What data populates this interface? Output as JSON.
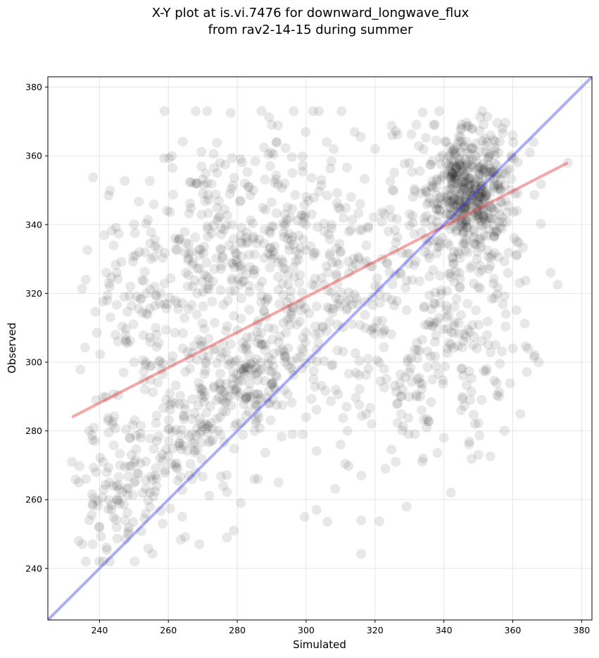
{
  "chart_data": {
    "type": "scatter",
    "title": "X-Y plot at is.vi.7476 for downward_longwave_flux",
    "subtitle": "from rav2-14-15 during summer",
    "xlabel": "Simulated",
    "ylabel": "Observed",
    "xlim": [
      225,
      383
    ],
    "ylim": [
      225,
      383
    ],
    "x_ticks": [
      240,
      260,
      280,
      300,
      320,
      340,
      360,
      380
    ],
    "y_ticks": [
      240,
      260,
      280,
      300,
      320,
      340,
      360,
      380
    ],
    "grid": true,
    "lines": [
      {
        "role": "regression fit",
        "x": [
          232,
          376
        ],
        "y": [
          284,
          358
        ],
        "color": "#e83c3c"
      },
      {
        "role": "1:1 line",
        "x": [
          225,
          383
        ],
        "y": [
          225,
          383
        ],
        "color": "#3c3cf0"
      }
    ],
    "point_color": "#000000",
    "clusters": [
      {
        "cx": 347,
        "cy": 350,
        "sx": 6,
        "sy": 9,
        "n": 420
      },
      {
        "cx": 345,
        "cy": 322,
        "sx": 10,
        "sy": 22,
        "n": 220
      },
      {
        "cx": 283,
        "cy": 296,
        "sx": 7,
        "sy": 10,
        "n": 160
      },
      {
        "cx": 276,
        "cy": 336,
        "sx": 14,
        "sy": 14,
        "n": 240
      },
      {
        "cx": 263,
        "cy": 280,
        "sx": 9,
        "sy": 12,
        "n": 130
      },
      {
        "cx": 247,
        "cy": 262,
        "sx": 6,
        "sy": 10,
        "n": 90
      },
      {
        "cx": 253,
        "cy": 308,
        "sx": 10,
        "sy": 16,
        "n": 110
      },
      {
        "cx": 305,
        "cy": 328,
        "sx": 16,
        "sy": 22,
        "n": 260
      },
      {
        "cx": 327,
        "cy": 300,
        "sx": 14,
        "sy": 20,
        "n": 110
      }
    ],
    "points": [
      [
        234,
        248
      ],
      [
        235,
        247
      ],
      [
        236,
        242
      ],
      [
        237,
        254
      ],
      [
        238,
        247
      ],
      [
        240,
        252
      ],
      [
        241,
        271
      ],
      [
        243,
        242
      ],
      [
        245,
        252
      ],
      [
        239,
        289
      ],
      [
        237,
        280
      ],
      [
        247,
        297
      ],
      [
        250,
        300
      ],
      [
        255,
        330
      ],
      [
        257,
        333
      ],
      [
        262,
        336
      ],
      [
        270,
        349
      ],
      [
        275,
        358
      ],
      [
        290,
        369
      ],
      [
        302,
        373
      ],
      [
        306,
        364
      ],
      [
        320,
        362
      ],
      [
        325,
        366
      ],
      [
        332,
        369
      ],
      [
        337,
        369
      ],
      [
        348,
        368
      ],
      [
        352,
        365
      ],
      [
        357,
        368
      ],
      [
        360,
        366
      ],
      [
        366,
        364
      ],
      [
        371,
        326
      ],
      [
        376,
        358
      ],
      [
        365,
        361
      ],
      [
        361,
        331
      ],
      [
        362,
        323
      ],
      [
        360,
        304
      ],
      [
        350,
        273
      ],
      [
        345,
        286
      ],
      [
        340,
        278
      ],
      [
        334,
        272
      ],
      [
        316,
        254
      ],
      [
        303,
        257
      ],
      [
        286,
        266
      ],
      [
        279,
        251
      ],
      [
        277,
        249
      ],
      [
        269,
        247
      ],
      [
        276,
        264
      ],
      [
        292,
        265
      ],
      [
        316,
        267
      ],
      [
        323,
        269
      ],
      [
        326,
        271
      ],
      [
        236,
        324
      ],
      [
        243,
        322
      ],
      [
        249,
        322
      ],
      [
        256,
        322
      ],
      [
        275,
        284
      ],
      [
        281,
        259
      ],
      [
        300,
        284
      ],
      [
        310,
        276
      ],
      [
        335,
        281
      ],
      [
        351,
        289
      ],
      [
        356,
        290
      ],
      [
        342,
        262
      ],
      [
        299,
        279
      ],
      [
        296,
        279
      ],
      [
        289,
        288
      ],
      [
        270,
        302
      ],
      [
        262,
        318
      ],
      [
        318,
        339
      ],
      [
        330,
        358
      ],
      [
        234,
        265
      ],
      [
        232,
        271
      ],
      [
        239,
        268
      ],
      [
        246,
        270
      ],
      [
        252,
        278
      ],
      [
        264,
        255
      ],
      [
        266,
        267
      ],
      [
        312,
        280
      ],
      [
        319,
        282
      ],
      [
        242,
        326
      ],
      [
        345,
        298
      ],
      [
        349,
        282
      ],
      [
        355,
        305
      ],
      [
        358,
        314
      ],
      [
        341,
        304
      ],
      [
        328,
        292
      ],
      [
        320,
        310
      ],
      [
        300,
        340
      ],
      [
        296,
        355
      ],
      [
        308,
        362
      ]
    ]
  }
}
